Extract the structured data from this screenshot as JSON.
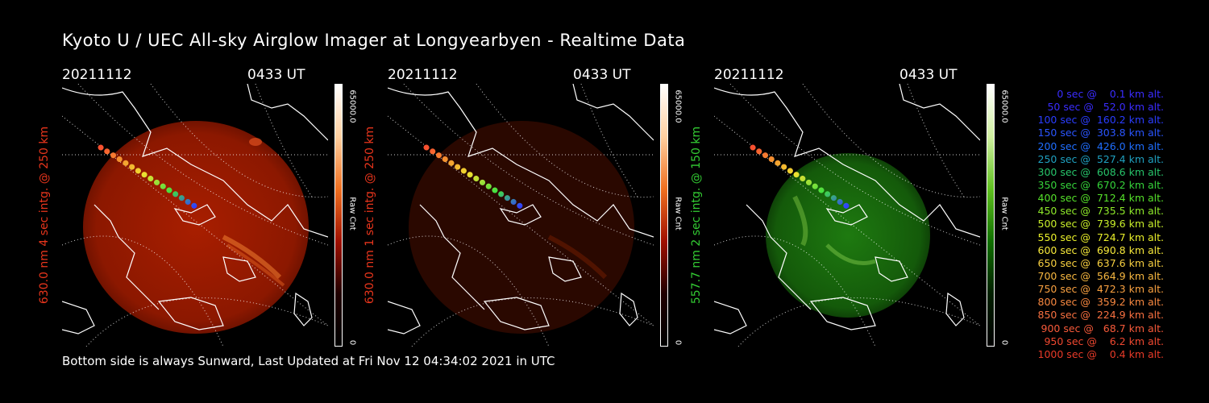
{
  "title": "Kyoto U / UEC All-sky Airglow Imager at Longyearbyen - Realtime Data",
  "footer": "Bottom side is always Sunward, Last Updated at Fri Nov 12 04:34:02 2021 in UTC",
  "panels": [
    {
      "date": "20211112",
      "time": "0433 UT",
      "ylabel": "630.0 nm 4 sec intg. @ 250 km",
      "label_color": "#e8351c",
      "cbar_max": "65000.0",
      "cbar_unit": "Raw Cnt",
      "cbar_min": "0",
      "palette": "red"
    },
    {
      "date": "20211112",
      "time": "0433 UT",
      "ylabel": "630.0 nm 1 sec intg. @ 250 km",
      "label_color": "#e8351c",
      "cbar_max": "65000.0",
      "cbar_unit": "Raw Cnt",
      "cbar_min": "0",
      "palette": "darkred"
    },
    {
      "date": "20211112",
      "time": "0433 UT",
      "ylabel": "557.7 nm 2 sec intg. @ 150 km",
      "label_color": "#33cc33",
      "cbar_max": "65000.0",
      "cbar_unit": "Raw Cnt",
      "cbar_min": "0",
      "palette": "green"
    }
  ],
  "legend": [
    {
      "text": "   0 sec @    0.1 km alt.",
      "color": "#3a2cff"
    },
    {
      "text": "  50 sec @   52.0 km alt.",
      "color": "#3a2cff"
    },
    {
      "text": " 100 sec @  160.2 km alt.",
      "color": "#2a3dff"
    },
    {
      "text": " 150 sec @  303.8 km alt.",
      "color": "#2a55ff"
    },
    {
      "text": " 200 sec @  426.0 km alt.",
      "color": "#1f6eff"
    },
    {
      "text": " 250 sec @  527.4 km alt.",
      "color": "#1fa0c0"
    },
    {
      "text": " 300 sec @  608.6 km alt.",
      "color": "#27c46a"
    },
    {
      "text": " 350 sec @  670.2 km alt.",
      "color": "#35d33a"
    },
    {
      "text": " 400 sec @  712.4 km alt.",
      "color": "#55e02a"
    },
    {
      "text": " 450 sec @  735.5 km alt.",
      "color": "#8ee82a"
    },
    {
      "text": " 500 sec @  739.6 km alt.",
      "color": "#c8ee2a"
    },
    {
      "text": " 550 sec @  724.7 km alt.",
      "color": "#eaf02a"
    },
    {
      "text": " 600 sec @  690.8 km alt.",
      "color": "#f6e83a"
    },
    {
      "text": " 650 sec @  637.6 km alt.",
      "color": "#f8d040"
    },
    {
      "text": " 700 sec @  564.9 km alt.",
      "color": "#f8b840"
    },
    {
      "text": " 750 sec @  472.3 km alt.",
      "color": "#f8a040"
    },
    {
      "text": " 800 sec @  359.2 km alt.",
      "color": "#f88840"
    },
    {
      "text": " 850 sec @  224.9 km alt.",
      "color": "#f87040"
    },
    {
      "text": " 900 sec @   68.7 km alt.",
      "color": "#f85a3a"
    },
    {
      "text": " 950 sec @    6.2 km alt.",
      "color": "#f04830"
    },
    {
      "text": "1000 sec @    0.4 km alt.",
      "color": "#e83a28"
    }
  ]
}
